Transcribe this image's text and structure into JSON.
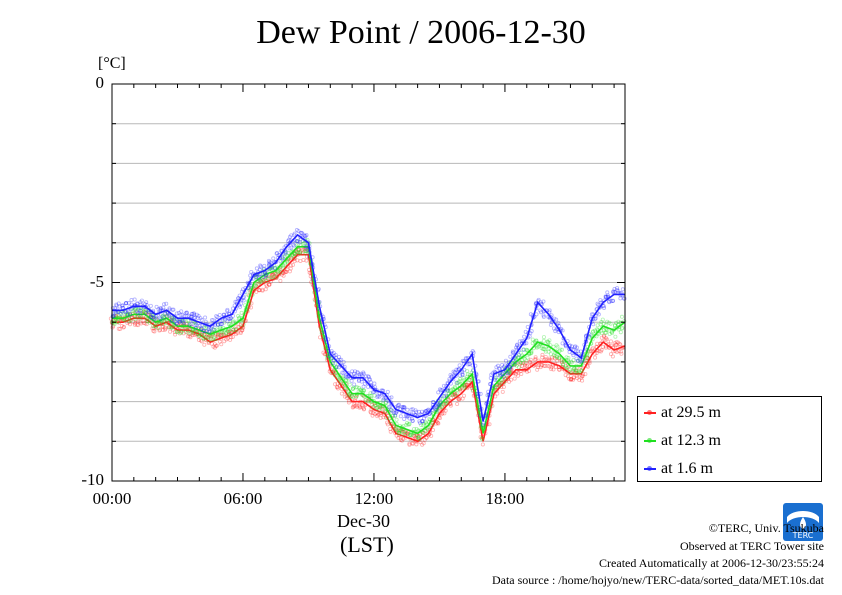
{
  "chart_data": {
    "type": "line",
    "title": "Dew Point / 2006-12-30",
    "unit_label": "[°C]",
    "ylim": [
      -10,
      0
    ],
    "y_ticks": [
      "0",
      "-5",
      "-10"
    ],
    "x_ticks": [
      "00:00",
      "06:00",
      "12:00",
      "18:00"
    ],
    "x_date_label": "Dec-30",
    "x_axis_label": "(LST)",
    "xlim_hours": [
      0,
      23.5
    ],
    "grid": true,
    "legend_position": "bottom-right",
    "series": [
      {
        "name": "at 29.5 m",
        "color": "#ff2020",
        "x": [
          0,
          0.5,
          1,
          1.5,
          2,
          2.5,
          3,
          3.5,
          4,
          4.5,
          5,
          5.5,
          6,
          6.5,
          7,
          7.5,
          8,
          8.5,
          9,
          9.5,
          10,
          10.5,
          11,
          11.5,
          12,
          12.5,
          13,
          13.5,
          14,
          14.5,
          15,
          15.5,
          16,
          16.5,
          17,
          17.5,
          18,
          18.5,
          19,
          19.5,
          20,
          20.5,
          21,
          21.5,
          22,
          22.5,
          23,
          23.5
        ],
        "y": [
          -6.0,
          -6.0,
          -5.9,
          -5.9,
          -6.1,
          -6.0,
          -6.2,
          -6.2,
          -6.3,
          -6.5,
          -6.4,
          -6.3,
          -6.1,
          -5.2,
          -5.0,
          -4.9,
          -4.6,
          -4.3,
          -4.3,
          -6.1,
          -7.2,
          -7.6,
          -8.0,
          -8.0,
          -8.2,
          -8.3,
          -8.8,
          -8.9,
          -9.0,
          -8.8,
          -8.3,
          -8.0,
          -7.8,
          -7.5,
          -9.0,
          -7.8,
          -7.5,
          -7.2,
          -7.2,
          -7.0,
          -7.0,
          -7.1,
          -7.3,
          -7.3,
          -6.8,
          -6.5,
          -6.7,
          -6.6
        ]
      },
      {
        "name": "at 12.3 m",
        "color": "#20e020",
        "x": [
          0,
          0.5,
          1,
          1.5,
          2,
          2.5,
          3,
          3.5,
          4,
          4.5,
          5,
          5.5,
          6,
          6.5,
          7,
          7.5,
          8,
          8.5,
          9,
          9.5,
          10,
          10.5,
          11,
          11.5,
          12,
          12.5,
          13,
          13.5,
          14,
          14.5,
          15,
          15.5,
          16,
          16.5,
          17,
          17.5,
          18,
          18.5,
          19,
          19.5,
          20,
          20.5,
          21,
          21.5,
          22,
          22.5,
          23,
          23.5
        ],
        "y": [
          -5.9,
          -5.9,
          -5.8,
          -5.8,
          -6.0,
          -5.9,
          -6.1,
          -6.1,
          -6.2,
          -6.3,
          -6.2,
          -6.1,
          -5.9,
          -5.0,
          -4.8,
          -4.7,
          -4.4,
          -4.1,
          -4.1,
          -5.9,
          -7.0,
          -7.4,
          -7.8,
          -7.8,
          -8.0,
          -8.1,
          -8.6,
          -8.7,
          -8.8,
          -8.6,
          -8.1,
          -7.8,
          -7.6,
          -7.3,
          -8.8,
          -7.6,
          -7.3,
          -7.0,
          -6.8,
          -6.5,
          -6.6,
          -6.8,
          -7.1,
          -7.1,
          -6.4,
          -6.1,
          -6.2,
          -6.0
        ]
      },
      {
        "name": "at 1.6 m",
        "color": "#2020ff",
        "x": [
          0,
          0.5,
          1,
          1.5,
          2,
          2.5,
          3,
          3.5,
          4,
          4.5,
          5,
          5.5,
          6,
          6.5,
          7,
          7.5,
          8,
          8.5,
          9,
          9.5,
          10,
          10.5,
          11,
          11.5,
          12,
          12.5,
          13,
          13.5,
          14,
          14.5,
          15,
          15.5,
          16,
          16.5,
          17,
          17.5,
          18,
          18.5,
          19,
          19.5,
          20,
          20.5,
          21,
          21.5,
          22,
          22.5,
          23,
          23.5
        ],
        "y": [
          -5.7,
          -5.7,
          -5.6,
          -5.6,
          -5.8,
          -5.7,
          -5.9,
          -5.9,
          -6.0,
          -6.1,
          -5.9,
          -5.8,
          -5.3,
          -4.8,
          -4.7,
          -4.5,
          -4.1,
          -3.8,
          -4.0,
          -5.6,
          -6.8,
          -7.1,
          -7.4,
          -7.4,
          -7.7,
          -7.8,
          -8.2,
          -8.3,
          -8.4,
          -8.3,
          -7.9,
          -7.5,
          -7.2,
          -6.8,
          -8.5,
          -7.3,
          -7.2,
          -6.8,
          -6.4,
          -5.5,
          -5.8,
          -6.2,
          -6.7,
          -6.9,
          -5.9,
          -5.5,
          -5.3,
          -5.3
        ]
      }
    ]
  },
  "credits": {
    "copyright": "©TERC, Univ. Tsukuba",
    "observed": "Observed at TERC Tower site",
    "created": "Created Automatically at 2006-12-30/23:55:24",
    "source": "Data source : /home/hojyo/new/TERC-data/sorted_data/MET.10s.dat",
    "logo_text": "TERC"
  }
}
